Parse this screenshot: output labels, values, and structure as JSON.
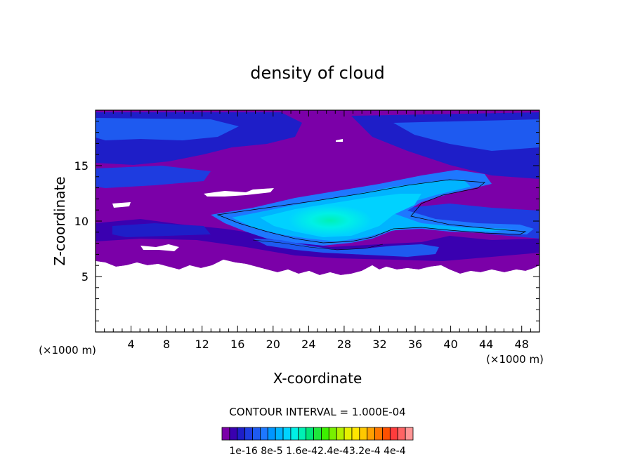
{
  "chart_data": {
    "type": "heatmap",
    "title": "density of cloud",
    "xlabel": "X-coordinate",
    "ylabel": "Z-coordinate",
    "x_unit": "(×1000 m)",
    "z_unit": "(×1000 m)",
    "xlim": [
      0,
      50
    ],
    "ylim": [
      0,
      20
    ],
    "x_ticks": [
      4,
      8,
      12,
      16,
      20,
      24,
      28,
      32,
      36,
      40,
      44,
      48
    ],
    "y_ticks": [
      5,
      10,
      15
    ],
    "contour_interval_text": "CONTOUR INTERVAL = 1.000E-04",
    "colorbar_labels": [
      "1e-16",
      "8e-5",
      "1.6e-4",
      "2.4e-4",
      "3.2e-4",
      "4e-4"
    ],
    "colorbar_label_text": "1e-16 8e-5 1.6e-42.4e-43.2e-4 4e-4",
    "colorbar_colors": [
      "#7b00a8",
      "#3a00b0",
      "#1e1ec8",
      "#1e3ce0",
      "#1e5af0",
      "#1e78ff",
      "#0096ff",
      "#00b4ff",
      "#00d2ff",
      "#00f0e6",
      "#00f0b4",
      "#00e678",
      "#1ee63c",
      "#3cf000",
      "#78f000",
      "#b4f000",
      "#e6f000",
      "#ffe600",
      "#ffc800",
      "#ffa000",
      "#ff7800",
      "#ff5000",
      "#ff3c3c",
      "#ff6464",
      "#ff9696"
    ]
  }
}
